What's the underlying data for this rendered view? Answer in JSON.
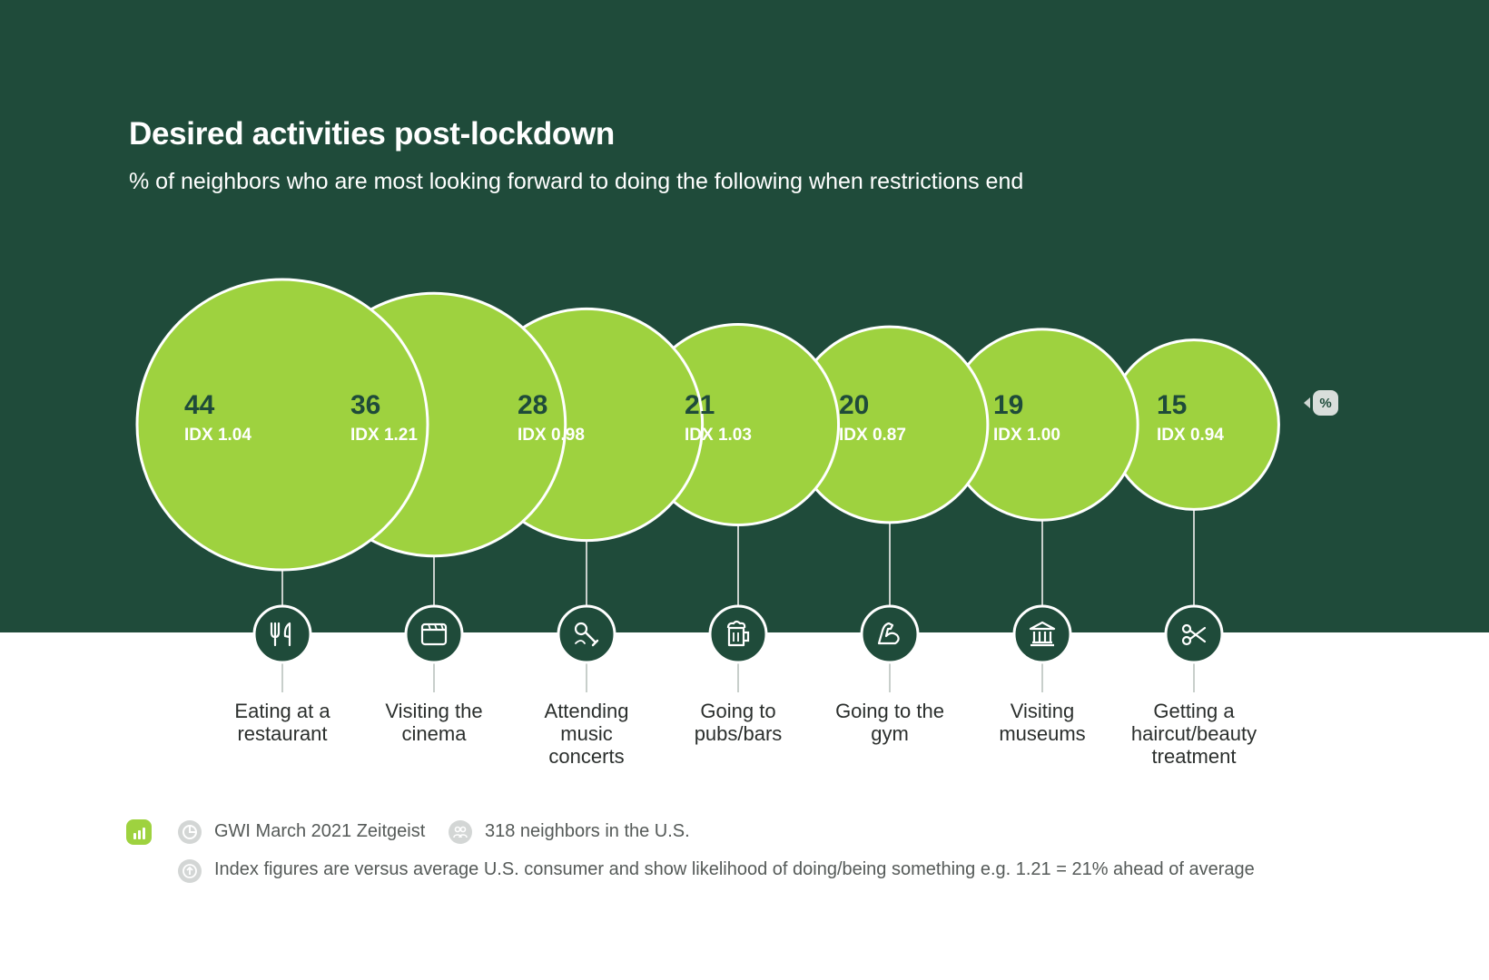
{
  "title": "Desired activities post-lockdown",
  "subtitle": "% of neighbors who are most looking forward to doing the following when restrictions end",
  "toggle_label": "%",
  "colors": {
    "background_dark": "#1f4b3a",
    "bubble_fill": "#9ed23f",
    "bubble_stroke": "#ffffff",
    "value_text": "#1f4b3a",
    "icon_circle": "#1f4b3a"
  },
  "chart_data": {
    "type": "bubble",
    "series": [
      {
        "name": "% of neighbors",
        "values": [
          44,
          36,
          28,
          21,
          20,
          19,
          15
        ]
      }
    ],
    "categories": [
      "Eating at a restaurant",
      "Visiting the cinema",
      "Attending music concerts",
      "Going to pubs/bars",
      "Going to the gym",
      "Visiting museums",
      "Getting a haircut/beauty treatment"
    ],
    "points": [
      {
        "label_lines": [
          "Eating at a",
          "restaurant"
        ],
        "value": "44",
        "index": "IDX 1.04",
        "icon": "cutlery-icon"
      },
      {
        "label_lines": [
          "Visiting the",
          "cinema"
        ],
        "value": "36",
        "index": "IDX 1.21",
        "icon": "clapperboard-icon"
      },
      {
        "label_lines": [
          "Attending",
          "music",
          "concerts"
        ],
        "value": "28",
        "index": "IDX 0.98",
        "icon": "microphone-icon"
      },
      {
        "label_lines": [
          "Going to",
          "pubs/bars"
        ],
        "value": "21",
        "index": "IDX 1.03",
        "icon": "beer-mug-icon"
      },
      {
        "label_lines": [
          "Going to the",
          "gym"
        ],
        "value": "20",
        "index": "IDX 0.87",
        "icon": "flexed-arm-icon"
      },
      {
        "label_lines": [
          "Visiting",
          "museums"
        ],
        "value": "19",
        "index": "IDX 1.00",
        "icon": "museum-icon"
      },
      {
        "label_lines": [
          "Getting a",
          "haircut/beauty",
          "treatment"
        ],
        "value": "15",
        "index": "IDX 0.94",
        "icon": "scissors-icon"
      }
    ]
  },
  "footer": {
    "source": "GWI March 2021 Zeitgeist",
    "sample": "318 neighbors in the U.S.",
    "note": "Index figures are versus average U.S. consumer and show likelihood of doing/being something e.g. 1.21 = 21% ahead of average",
    "icons": [
      "bar-chart-icon",
      "pie-chart-icon",
      "people-icon",
      "arrow-up-icon"
    ]
  }
}
